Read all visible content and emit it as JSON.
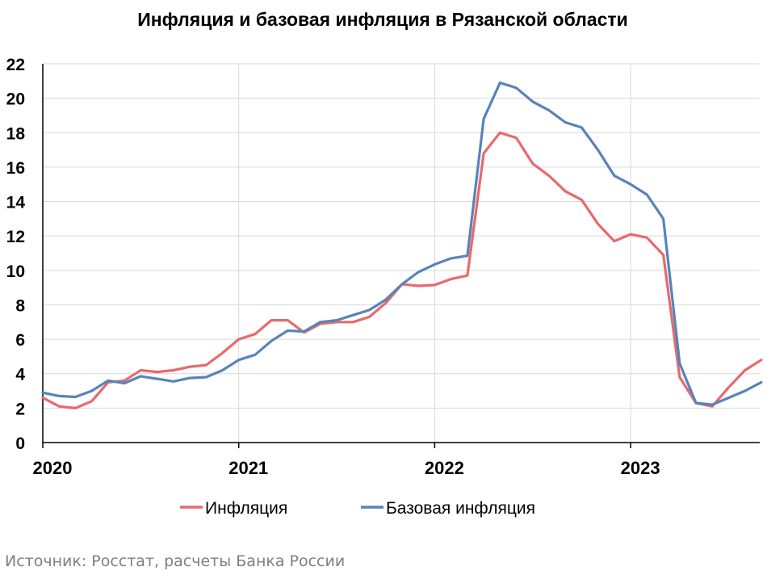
{
  "chart_data": {
    "type": "line",
    "title": "Инфляция и базовая инфляция в Рязанской области",
    "xlabel": "",
    "ylabel": "",
    "ylim": [
      0,
      22
    ],
    "yticks": [
      0,
      2,
      4,
      6,
      8,
      10,
      12,
      14,
      16,
      18,
      20,
      22
    ],
    "xticks": [
      "2020",
      "2021",
      "2022",
      "2023"
    ],
    "grid": true,
    "legend_position": "bottom",
    "x_start": "2020-01",
    "x_end": "2023-08",
    "series": [
      {
        "name": "Инфляция",
        "color": "#e8696d",
        "values": [
          2.6,
          2.1,
          2.0,
          2.4,
          3.5,
          3.6,
          4.2,
          4.1,
          4.2,
          4.4,
          4.5,
          5.2,
          6.0,
          6.3,
          7.1,
          7.1,
          6.4,
          6.9,
          7.0,
          7.0,
          7.3,
          8.1,
          9.2,
          9.1,
          9.15,
          9.5,
          9.7,
          16.8,
          18.0,
          17.7,
          16.2,
          15.5,
          14.6,
          14.1,
          12.7,
          11.7,
          12.1,
          11.9,
          10.9,
          3.8,
          2.3,
          2.1,
          3.2,
          4.2,
          4.8
        ]
      },
      {
        "name": "Базовая инфляция",
        "color": "#5784bb",
        "values": [
          2.9,
          2.7,
          2.65,
          3.0,
          3.6,
          3.45,
          3.85,
          3.7,
          3.55,
          3.75,
          3.8,
          4.2,
          4.8,
          5.1,
          5.9,
          6.5,
          6.45,
          7.0,
          7.1,
          7.4,
          7.7,
          8.3,
          9.2,
          9.9,
          10.35,
          10.7,
          10.85,
          18.8,
          20.9,
          20.6,
          19.8,
          19.3,
          18.6,
          18.3,
          17.0,
          15.5,
          15.0,
          14.4,
          13.0,
          4.6,
          2.3,
          2.2,
          2.6,
          3.0,
          3.5
        ]
      }
    ]
  },
  "source": "Источник: Росстат, расчеты Банка России"
}
